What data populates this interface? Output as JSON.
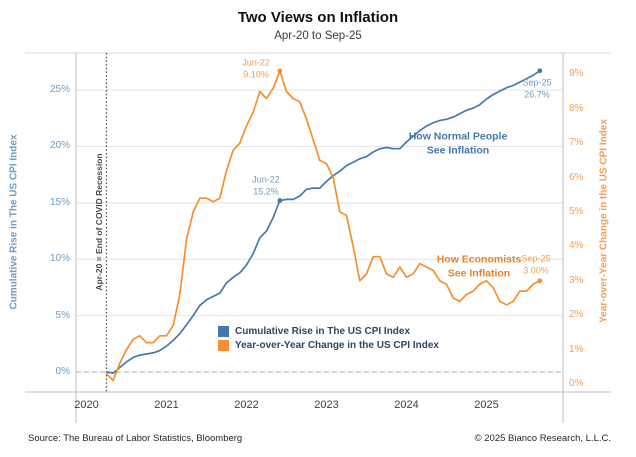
{
  "header": {
    "title": "Two Views on Inflation",
    "subtitle": "Apr-20 to Sep-25"
  },
  "footer": {
    "source": "Source: The Bureau of Labor Statistics, Bloomberg",
    "copyright": "© 2025 Bianco Research, L.L.C."
  },
  "colors": {
    "blue_line": "#4878ab",
    "orange_line": "#f78f2e",
    "blue_light": "#6f9cc4",
    "orange_light": "#f5a056",
    "grid": "#e3e3e3",
    "frame": "#c9c9c9",
    "zero_dash": "#ababab",
    "covid_dotted": "#4d4d4d"
  },
  "axes": {
    "left_title": "Cumulative Rise in The US CPI Index",
    "right_title": "Year-over-Year Change in the US CPI Index",
    "left_ticks": [
      "0%",
      "5%",
      "10%",
      "15%",
      "20%",
      "25%"
    ],
    "left_tick_values": [
      0,
      5,
      10,
      15,
      20,
      25
    ],
    "right_ticks": [
      "0%",
      "1%",
      "2%",
      "3%",
      "4%",
      "5%",
      "6%",
      "7%",
      "8%",
      "9%"
    ],
    "right_tick_values": [
      0,
      1,
      2,
      3,
      4,
      5,
      6,
      7,
      8,
      9
    ],
    "x_ticks": [
      "2020",
      "2021",
      "2022",
      "2023",
      "2024",
      "2025"
    ]
  },
  "legend": {
    "items": [
      {
        "label": "Cumulative Rise in The US CPI Index",
        "color": "#4878ab"
      },
      {
        "label": "Year-over-Year Change in the US CPI Index",
        "color": "#f78f2e"
      }
    ]
  },
  "annotations": {
    "covid_line": "Apr-20 = End of COVID Recession",
    "orange_peak": {
      "line1": "Jun-22",
      "line2": "9.10%"
    },
    "blue_peak": {
      "line1": "Jun-22",
      "line2": "15.2%"
    },
    "blue_end": {
      "line1": "Sep-25",
      "line2": "26.7%"
    },
    "orange_end": {
      "line1": "Sep-25",
      "line2": "3.00%"
    },
    "blue_callout": {
      "line1": "How Normal People",
      "line2": "See Inflation"
    },
    "orange_callout": {
      "line1": "How Economists",
      "line2": "See Inflation"
    }
  },
  "chart_data": {
    "type": "line",
    "title": "Two Views on Inflation",
    "subtitle": "Apr-20 to Sep-25",
    "x_unit": "month",
    "x_start": "Apr-20",
    "x_end": "Sep-25",
    "grid": "horizontal-only",
    "legend_position": "inside-lower-center",
    "zero_line_dashed": true,
    "vline_month_index": 0,
    "marker_month_indices": [
      26,
      65
    ],
    "ylim_left": [
      -1.77,
      28.28
    ],
    "ylim_right": [
      -0.233,
      9.622
    ],
    "months": [
      "Apr-20",
      "May-20",
      "Jun-20",
      "Jul-20",
      "Aug-20",
      "Sep-20",
      "Oct-20",
      "Nov-20",
      "Dec-20",
      "Jan-21",
      "Feb-21",
      "Mar-21",
      "Apr-21",
      "May-21",
      "Jun-21",
      "Jul-21",
      "Aug-21",
      "Sep-21",
      "Oct-21",
      "Nov-21",
      "Dec-21",
      "Jan-22",
      "Feb-22",
      "Mar-22",
      "Apr-22",
      "May-22",
      "Jun-22",
      "Jul-22",
      "Aug-22",
      "Sep-22",
      "Oct-22",
      "Nov-22",
      "Dec-22",
      "Jan-23",
      "Feb-23",
      "Mar-23",
      "Apr-23",
      "May-23",
      "Jun-23",
      "Jul-23",
      "Aug-23",
      "Sep-23",
      "Oct-23",
      "Nov-23",
      "Dec-23",
      "Jan-24",
      "Feb-24",
      "Mar-24",
      "Apr-24",
      "May-24",
      "Jun-24",
      "Jul-24",
      "Aug-24",
      "Sep-24",
      "Oct-24",
      "Nov-24",
      "Dec-24",
      "Jan-25",
      "Feb-25",
      "Mar-25",
      "Apr-25",
      "May-25",
      "Jun-25",
      "Jul-25",
      "Aug-25",
      "Sep-25"
    ],
    "series": [
      {
        "name": "Cumulative Rise in The US CPI Index",
        "axis": "left",
        "color": "#4878ab",
        "values": [
          0.0,
          -0.1,
          0.4,
          0.9,
          1.3,
          1.5,
          1.6,
          1.7,
          1.9,
          2.3,
          2.8,
          3.4,
          4.2,
          5.0,
          5.9,
          6.4,
          6.7,
          7.0,
          7.9,
          8.4,
          8.8,
          9.5,
          10.5,
          11.9,
          12.5,
          13.7,
          15.2,
          15.3,
          15.3,
          15.6,
          16.2,
          16.3,
          16.3,
          16.9,
          17.4,
          17.8,
          18.3,
          18.6,
          18.9,
          19.1,
          19.5,
          19.8,
          19.9,
          19.8,
          19.8,
          20.4,
          20.9,
          21.4,
          21.8,
          22.1,
          22.3,
          22.4,
          22.6,
          22.9,
          23.2,
          23.4,
          23.7,
          24.2,
          24.6,
          24.9,
          25.2,
          25.4,
          25.7,
          26.0,
          26.3,
          26.7
        ]
      },
      {
        "name": "Year-over-Year Change in the US CPI Index",
        "axis": "right",
        "color": "#f78f2e",
        "values": [
          0.3,
          0.1,
          0.6,
          1.0,
          1.3,
          1.4,
          1.2,
          1.2,
          1.4,
          1.4,
          1.7,
          2.6,
          4.2,
          5.0,
          5.4,
          5.4,
          5.3,
          5.4,
          6.2,
          6.8,
          7.0,
          7.5,
          7.9,
          8.5,
          8.3,
          8.6,
          9.1,
          8.5,
          8.3,
          8.2,
          7.7,
          7.1,
          6.5,
          6.4,
          6.0,
          5.0,
          4.9,
          4.0,
          3.0,
          3.2,
          3.7,
          3.7,
          3.2,
          3.1,
          3.4,
          3.1,
          3.2,
          3.5,
          3.4,
          3.3,
          3.0,
          2.9,
          2.5,
          2.4,
          2.6,
          2.7,
          2.9,
          3.0,
          2.8,
          2.4,
          2.3,
          2.4,
          2.7,
          2.7,
          2.9,
          3.0
        ]
      }
    ]
  }
}
